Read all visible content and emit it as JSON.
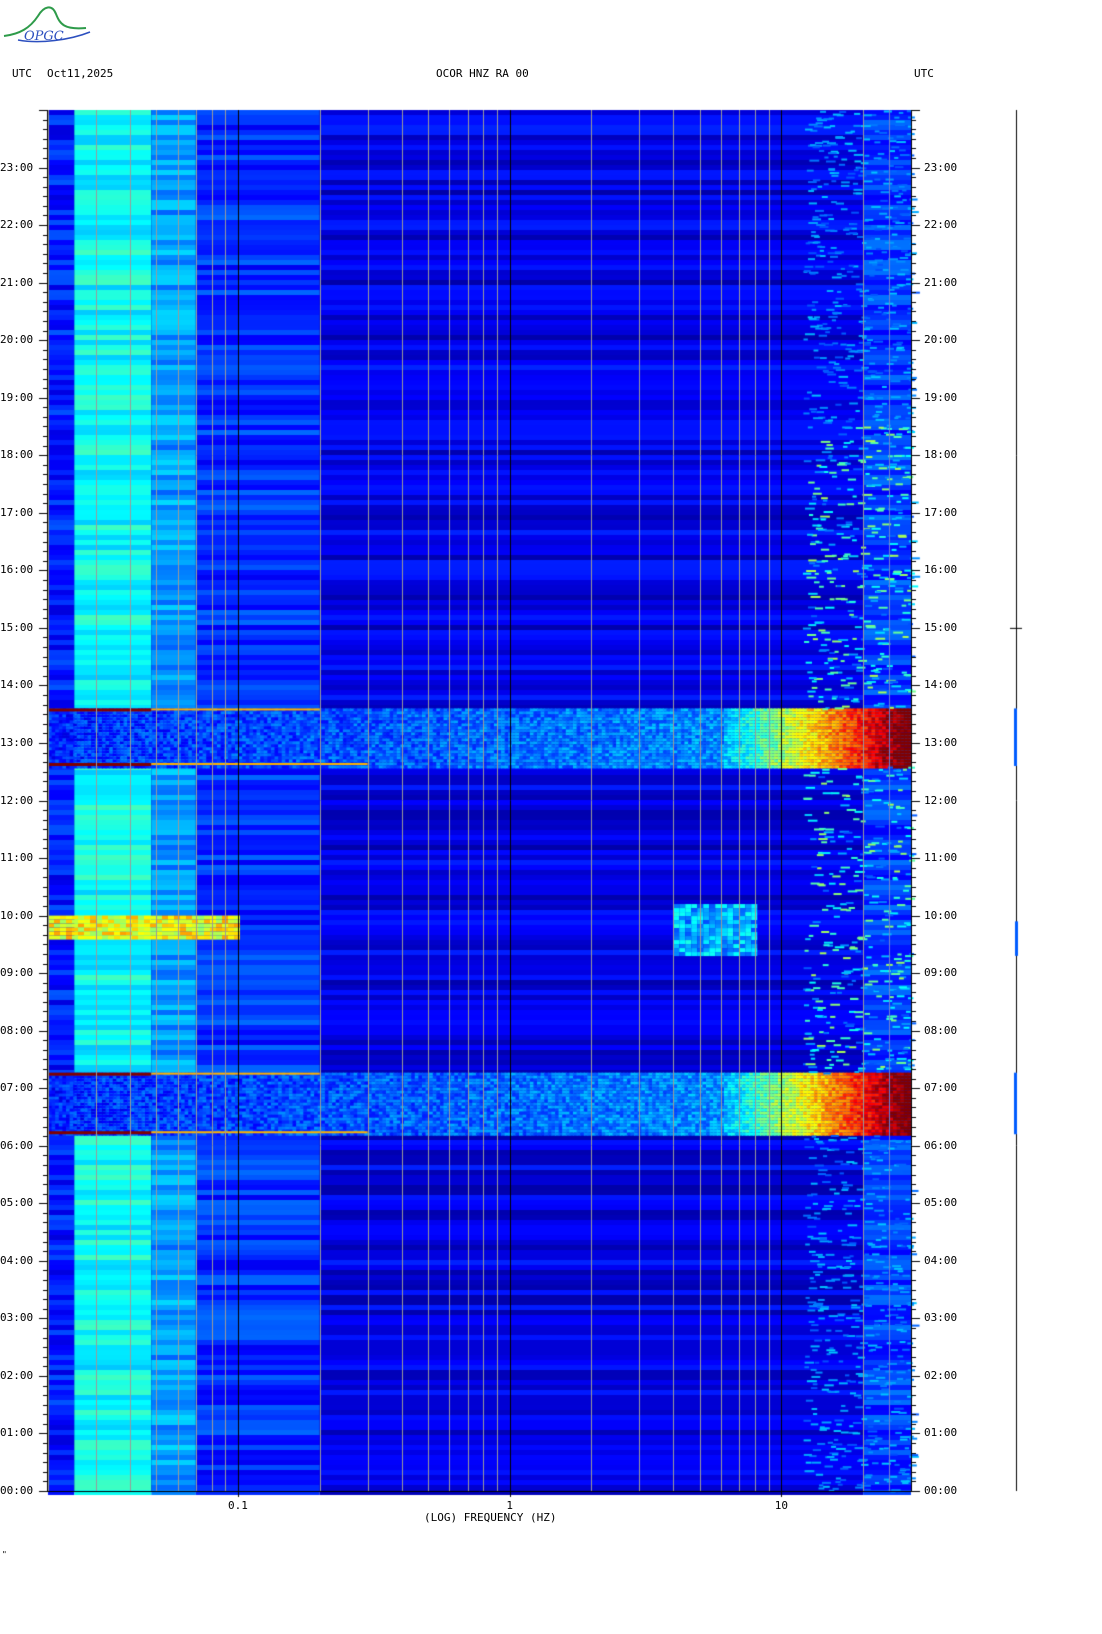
{
  "logo": {
    "text": "OPGC"
  },
  "header": {
    "left_tz": "UTC",
    "date": "Oct11,2025",
    "station": "OCOR HNZ RA 00",
    "right_tz": "UTC"
  },
  "footer_mark": "\"",
  "colors": {
    "background": "#00008f",
    "grid_major": "#000000",
    "grid_minor": "#9a9a9a",
    "trace": "#000000"
  },
  "chart_data": {
    "type": "heatmap",
    "title": "OCOR HNZ RA 00",
    "xlabel": "(LOG) FREQUENCY (HZ)",
    "ylabel": "UTC",
    "x_scale": "log",
    "xlim": [
      0.02,
      30
    ],
    "x_ticks": [
      {
        "value": 0.1,
        "label": "0.1"
      },
      {
        "value": 1,
        "label": "1"
      },
      {
        "value": 10,
        "label": "10"
      }
    ],
    "y_unit": "hours UTC",
    "ylim": [
      0,
      24
    ],
    "y_ticks": [
      "00:00",
      "01:00",
      "02:00",
      "03:00",
      "04:00",
      "05:00",
      "06:00",
      "07:00",
      "08:00",
      "09:00",
      "10:00",
      "11:00",
      "12:00",
      "13:00",
      "14:00",
      "15:00",
      "16:00",
      "17:00",
      "18:00",
      "19:00",
      "20:00",
      "21:00",
      "22:00",
      "23:00"
    ],
    "colormap": "jet (low = dark blue, high = dark red)",
    "events": [
      {
        "start": 6.2,
        "end": 7.27,
        "fmin": 0.02,
        "fmax": 30,
        "peak_freq_band": [
          10,
          30
        ],
        "intensity": "very high"
      },
      {
        "start": 12.6,
        "end": 13.6,
        "fmin": 0.02,
        "fmax": 30,
        "peak_freq_band": [
          10,
          30
        ],
        "intensity": "very high"
      },
      {
        "start": 9.3,
        "end": 10.2,
        "fmin": 4,
        "fmax": 8,
        "intensity": "low"
      },
      {
        "start": 9.6,
        "end": 10.0,
        "fmin": 0.02,
        "fmax": 0.1,
        "intensity": "high"
      }
    ],
    "background_bands": [
      {
        "fmin": 0.02,
        "fmax": 0.025,
        "level": 0.15
      },
      {
        "fmin": 0.025,
        "fmax": 0.048,
        "level": 0.38
      },
      {
        "fmin": 0.048,
        "fmax": 0.07,
        "level": 0.28
      },
      {
        "fmin": 0.07,
        "fmax": 0.2,
        "level": 0.17
      },
      {
        "fmin": 0.2,
        "fmax": 20,
        "level": 0.1
      },
      {
        "fmin": 20,
        "fmax": 30,
        "level": 0.18
      }
    ]
  }
}
